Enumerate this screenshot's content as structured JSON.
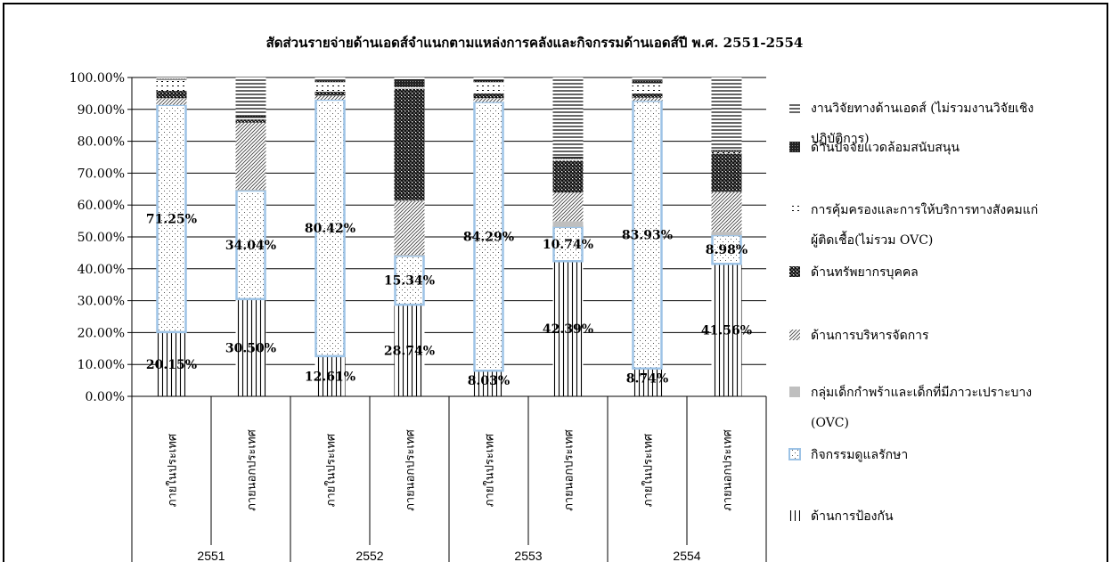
{
  "chart_data": {
    "type": "bar",
    "stacked": true,
    "title": "สัดส่วนรายจ่ายด้านเอดส์จำแนกตามแหล่งการคลังและกิจกรรมด้านเอดส์ปี พ.ศ. 2551-2554",
    "ylim": [
      0,
      100
    ],
    "y_ticks": [
      "0.00%",
      "10.00%",
      "20.00%",
      "30.00%",
      "40.00%",
      "50.00%",
      "60.00%",
      "70.00%",
      "80.00%",
      "90.00%",
      "100.00%"
    ],
    "years": [
      "2551",
      "2552",
      "2553",
      "2554"
    ],
    "categories": [
      "ภายในประเทศ",
      "ภายนอกประเทศ",
      "ภายในประเทศ",
      "ภายนอกประเทศ",
      "ภายในประเทศ",
      "ภายนอกประเทศ",
      "ภายในประเทศ",
      "ภายนอกประเทศ"
    ],
    "series": [
      {
        "name": "ด้านการป้องกัน",
        "pattern": "vlines",
        "values": [
          20.15,
          30.5,
          12.61,
          28.74,
          8.03,
          42.39,
          8.74,
          41.56
        ]
      },
      {
        "name": "กิจกรรมดูแลรักษา",
        "pattern": "dots-blue",
        "values": [
          71.25,
          34.04,
          80.42,
          15.34,
          84.29,
          10.74,
          83.93,
          8.98
        ]
      },
      {
        "name": "กลุ่มเด็กกำพร้าและเด็กที่มีภาวะเปราะบาง (OVC)",
        "pattern": "gray",
        "values": [
          0.0,
          0.3,
          0.0,
          0.3,
          0.0,
          1.8,
          0.0,
          1.1
        ]
      },
      {
        "name": "ด้านการบริหารจัดการ",
        "pattern": "diag",
        "values": [
          2.1,
          21.0,
          1.3,
          17.0,
          1.2,
          9.0,
          1.0,
          12.5
        ]
      },
      {
        "name": "ด้านทรัพยากรบุคคล",
        "pattern": "cross",
        "values": [
          2.3,
          1.0,
          1.2,
          35.1,
          1.5,
          10.0,
          1.3,
          12.0
        ]
      },
      {
        "name": "การคุ้มครองและการให้บริการทางสังคมแก่ผู้ติดเชื้อ(ไม่รวม OVC)",
        "pattern": "sparse",
        "values": [
          3.5,
          0.5,
          3.0,
          0.5,
          3.5,
          0.5,
          3.2,
          0.5
        ]
      },
      {
        "name": "ด้านปัจจัยแวดล้อมสนับสนุน",
        "pattern": "darkcheck",
        "values": [
          0.3,
          0.5,
          0.6,
          2.5,
          0.5,
          0.7,
          0.8,
          0.6
        ]
      },
      {
        "name": "งานวิจัยทางด้านเอดส์ (ไม่รวมงานวิจัยเชิงปฏิบัติการ)",
        "pattern": "hlines",
        "values": [
          0.4,
          12.16,
          0.87,
          0.52,
          0.98,
          24.87,
          1.03,
          22.76
        ]
      }
    ],
    "data_labels": [
      {
        "series": 0,
        "texts": [
          "20.15%",
          "30.50%",
          "12.61%",
          "28.74%",
          "8.03%",
          "42.39%",
          "8.74%",
          "41.56%"
        ]
      },
      {
        "series": 1,
        "texts": [
          "71.25%",
          "34.04%",
          "80.42%",
          "15.34%",
          "84.29%",
          "10.74%",
          "83.93%",
          "8.98%"
        ]
      }
    ],
    "legend": {
      "position": "right",
      "entries": [
        {
          "lines": [
            "งานวิจัยทางด้านเอดส์ (ไม่รวมงานวิจัยเชิง",
            "ปฏิบัติการ)"
          ],
          "pattern": "hlines"
        },
        {
          "lines": [
            "ด้านปัจจัยแวดล้อมสนับสนุน"
          ],
          "pattern": "darkcheck"
        },
        {
          "lines": [
            "การคุ้มครองและการให้บริการทางสังคมแก่",
            "ผู้ติดเชื้อ(ไม่รวม OVC)"
          ],
          "pattern": "sparse"
        },
        {
          "lines": [
            "ด้านทรัพยากรบุคคล"
          ],
          "pattern": "cross"
        },
        {
          "lines": [
            "ด้านการบริหารจัดการ"
          ],
          "pattern": "diag"
        },
        {
          "lines": [
            "กลุ่มเด็กกำพร้าและเด็กที่มีภาวะเปราะบาง",
            "(OVC)"
          ],
          "pattern": "gray"
        },
        {
          "lines": [
            "กิจกรรมดูแลรักษา"
          ],
          "pattern": "dots-blue"
        },
        {
          "lines": [
            "ด้านการป้องกัน"
          ],
          "pattern": "vlines"
        }
      ]
    },
    "grid": true,
    "colors": {
      "care_outline": "#9DC3E6",
      "gray": "#BFBFBF",
      "ink": "#000000"
    }
  }
}
